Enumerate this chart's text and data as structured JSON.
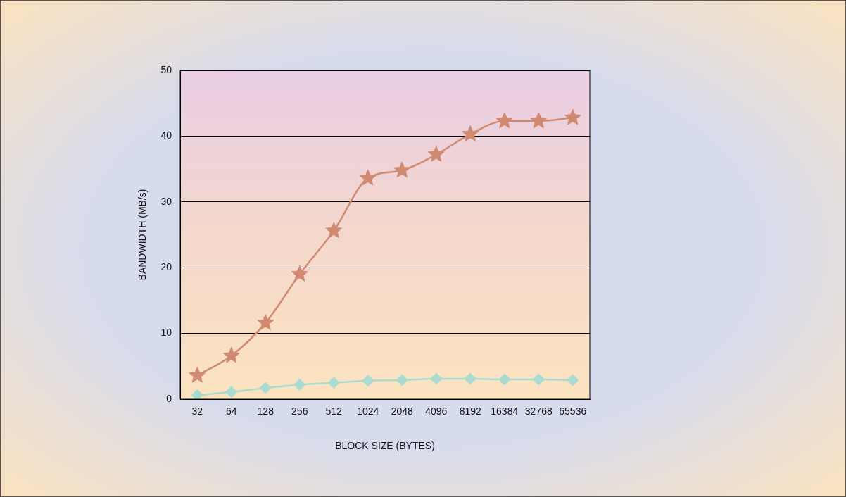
{
  "chart_data": {
    "type": "line",
    "xlabel": "BLOCK SIZE (BYTES)",
    "ylabel": "BANDWIDTH (MB/s)",
    "categories": [
      "32",
      "64",
      "128",
      "256",
      "512",
      "1024",
      "2048",
      "4096",
      "8192",
      "16384",
      "32768",
      "65536"
    ],
    "series": [
      {
        "color": "#d08a72",
        "values": [
          3.6,
          6.6,
          11.6,
          19.0,
          25.6,
          33.6,
          34.8,
          37.2,
          40.3,
          42.3,
          42.3,
          42.8
        ],
        "marker": "star"
      },
      {
        "color": "#a8dcd0",
        "values": [
          0.6,
          1.1,
          1.7,
          2.2,
          2.5,
          2.8,
          2.9,
          3.1,
          3.1,
          3.0,
          3.0,
          2.9
        ],
        "marker": "diamond"
      }
    ],
    "ylim": [
      0,
      50
    ],
    "yticks": [
      0,
      10,
      20,
      30,
      40,
      50
    ],
    "grid": "y",
    "line_style": "solid"
  }
}
